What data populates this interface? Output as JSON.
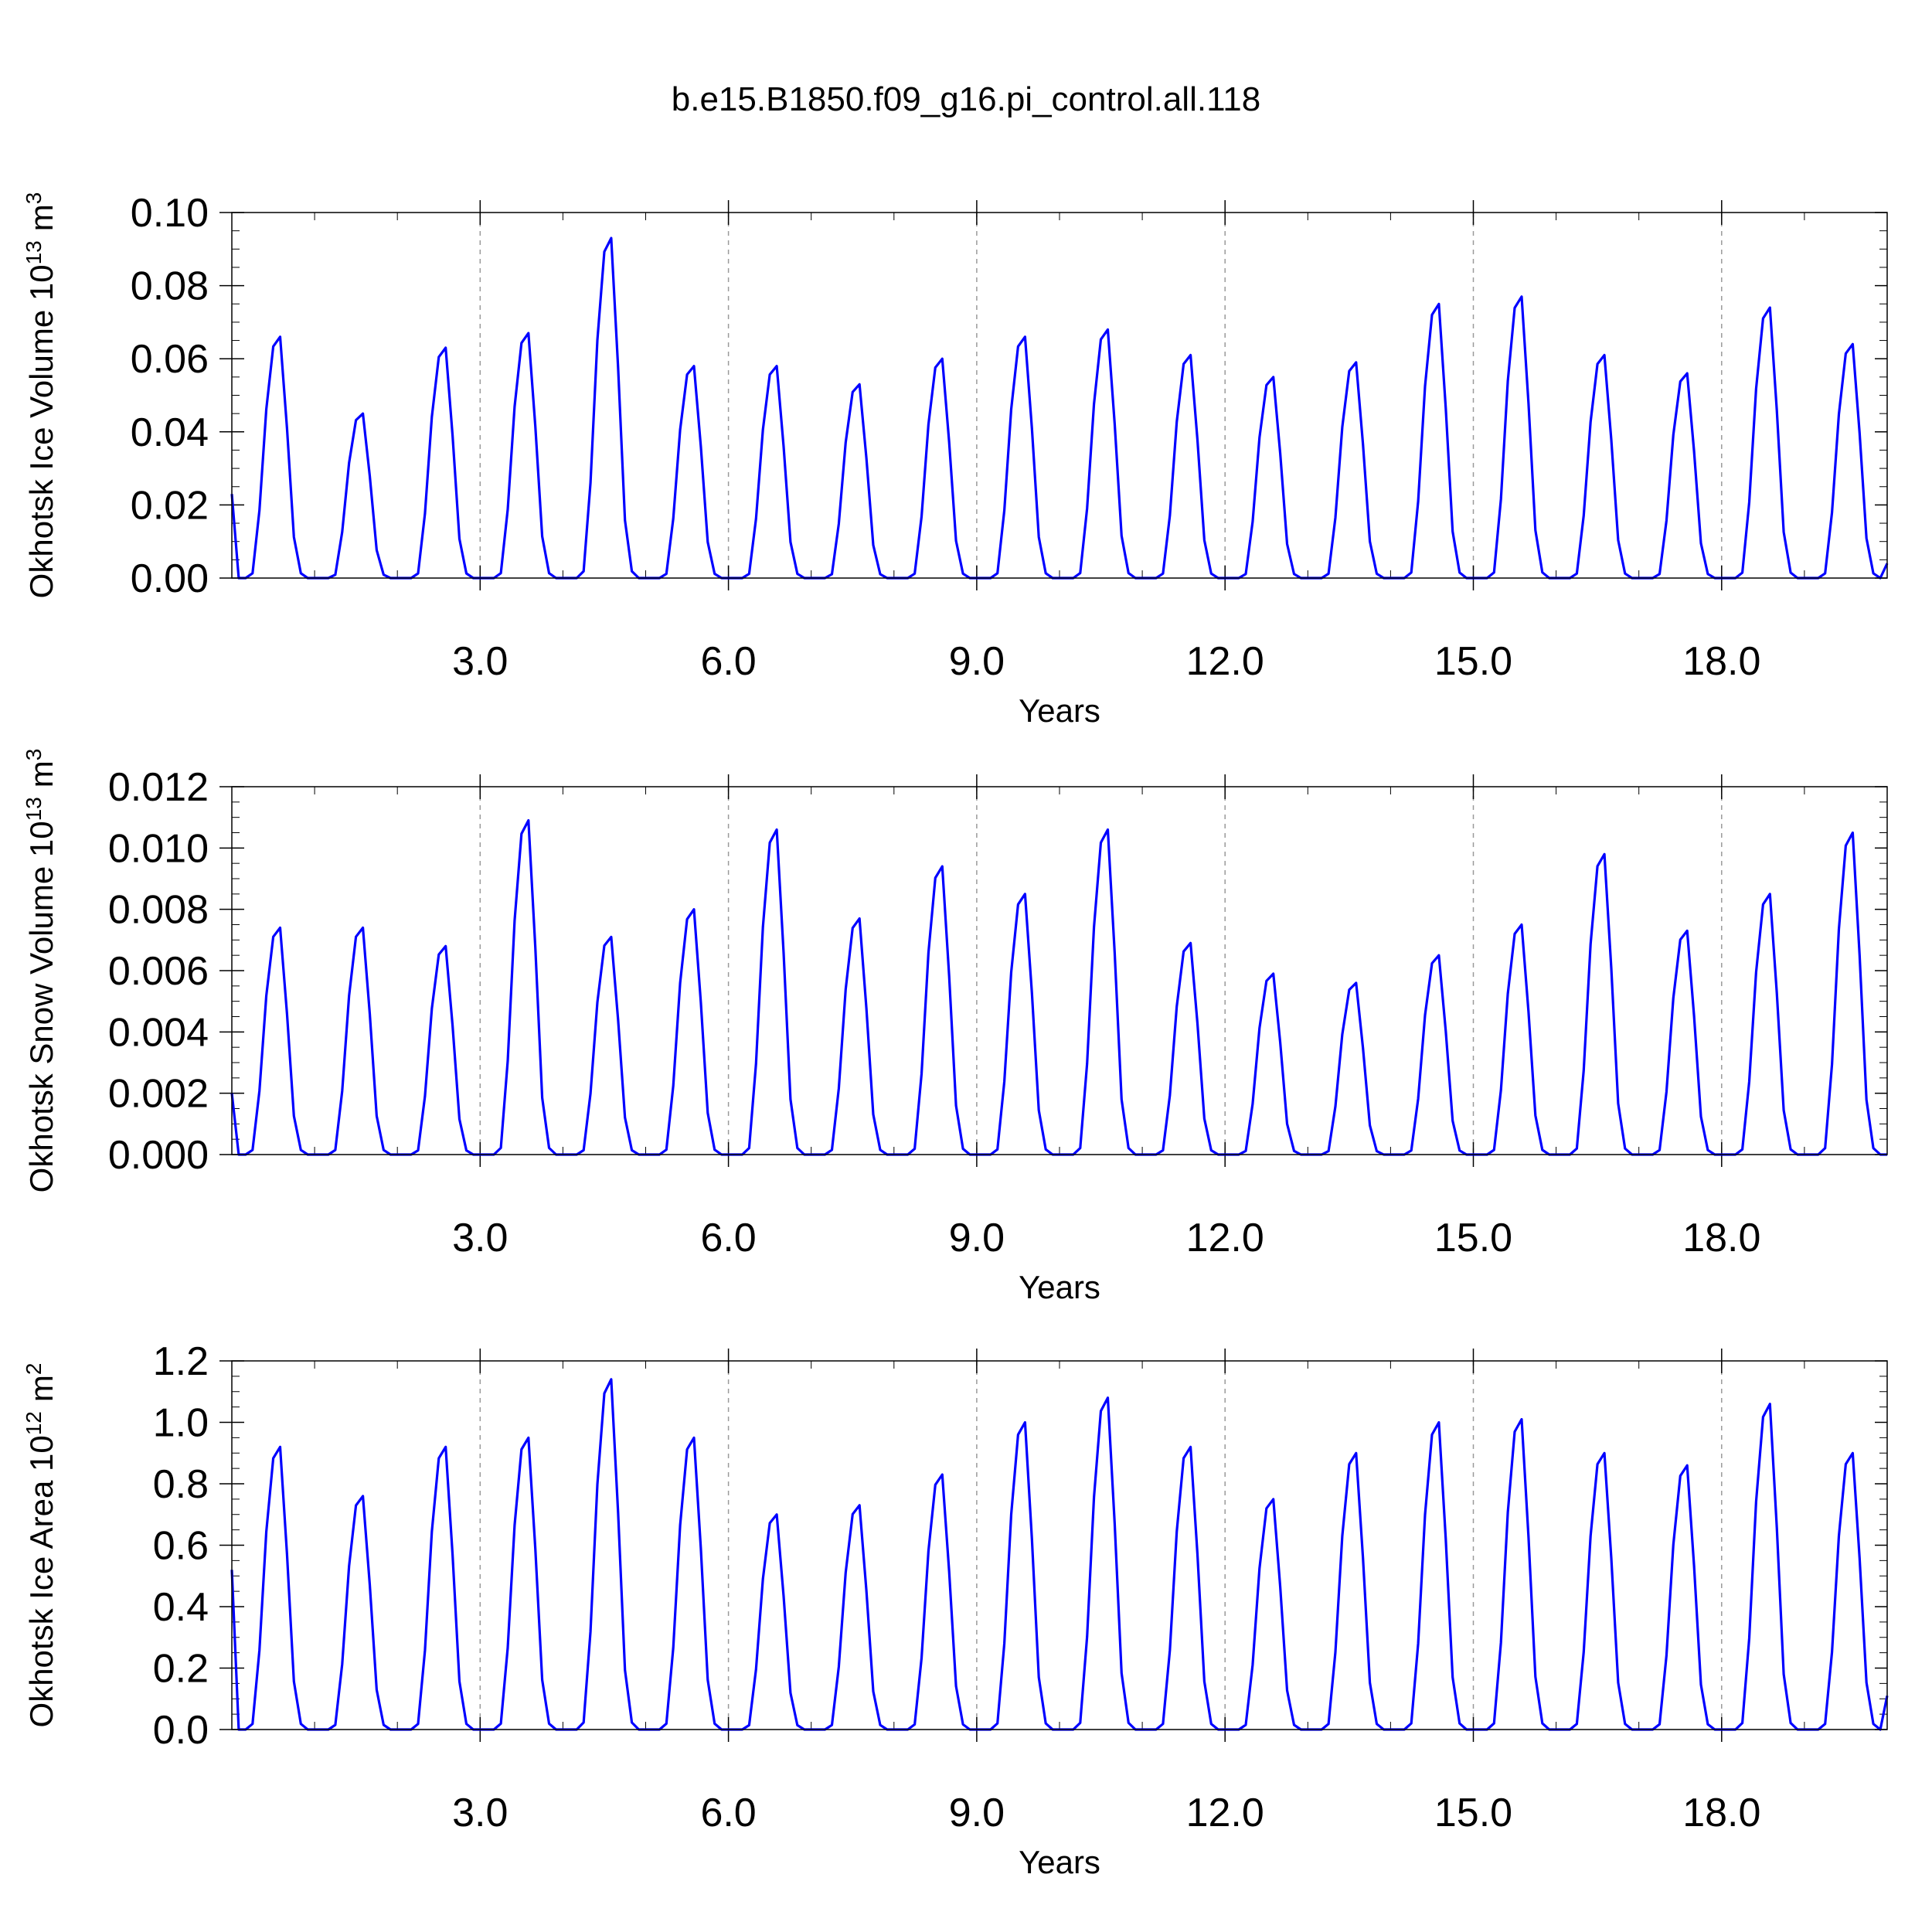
{
  "figure_title": "b.e15.B1850.f09_g16.pi_control.all.118",
  "series_color": "#0000ff",
  "chart_data": [
    {
      "type": "line",
      "name": "ice-volume",
      "ylabel": "Okhotsk Ice Volume 10",
      "ylabel_exp": "13",
      "ylabel_unit": "m",
      "ylabel_unit_exp": "3",
      "xlabel": "Years",
      "xlim": [
        0,
        20
      ],
      "ylim": [
        0,
        0.1
      ],
      "yticks": [
        0,
        0.02,
        0.04,
        0.06,
        0.08,
        0.1
      ],
      "ytick_labels": [
        "0.00",
        "0.02",
        "0.04",
        "0.06",
        "0.08",
        "0.10"
      ],
      "yminor_step": 0.005,
      "xticks": [
        3,
        6,
        9,
        12,
        15,
        18
      ],
      "xtick_labels": [
        "3.0",
        "6.0",
        "9.0",
        "12.0",
        "15.0",
        "18.0"
      ],
      "xminor_step": 1,
      "grid_x": true,
      "peaks": [
        0.066,
        0.045,
        0.063,
        0.067,
        0.093,
        0.058,
        0.058,
        0.053,
        0.06,
        0.066,
        0.068,
        0.061,
        0.055,
        0.059,
        0.075,
        0.077,
        0.061,
        0.056,
        0.074,
        0.064
      ],
      "start_value": 0.023,
      "end_value": 0.004
    },
    {
      "type": "line",
      "name": "snow-volume",
      "ylabel": "Okhotsk Snow Volume 10",
      "ylabel_exp": "13",
      "ylabel_unit": "m",
      "ylabel_unit_exp": "3",
      "xlabel": "Years",
      "xlim": [
        0,
        20
      ],
      "ylim": [
        0,
        0.012
      ],
      "yticks": [
        0,
        0.002,
        0.004,
        0.006,
        0.008,
        0.01,
        0.012
      ],
      "ytick_labels": [
        "0.000",
        "0.002",
        "0.004",
        "0.006",
        "0.008",
        "0.010",
        "0.012"
      ],
      "yminor_step": 0.0005,
      "xticks": [
        3,
        6,
        9,
        12,
        15,
        18
      ],
      "xtick_labels": [
        "3.0",
        "6.0",
        "9.0",
        "12.0",
        "15.0",
        "18.0"
      ],
      "xminor_step": 1,
      "grid_x": true,
      "peaks": [
        0.0074,
        0.0074,
        0.0068,
        0.0109,
        0.0071,
        0.008,
        0.0106,
        0.0077,
        0.0094,
        0.0085,
        0.0106,
        0.0069,
        0.0059,
        0.0056,
        0.0065,
        0.0075,
        0.0098,
        0.0073,
        0.0085,
        0.0105
      ],
      "start_value": 0.002,
      "end_value": 0
    },
    {
      "type": "line",
      "name": "ice-area",
      "ylabel": "Okhotsk Ice Area 10",
      "ylabel_exp": "12",
      "ylabel_unit": "m",
      "ylabel_unit_exp": "2",
      "xlabel": "Years",
      "xlim": [
        0,
        20
      ],
      "ylim": [
        0,
        1.2
      ],
      "yticks": [
        0,
        0.2,
        0.4,
        0.6,
        0.8,
        1.0,
        1.2
      ],
      "ytick_labels": [
        "0.0",
        "0.2",
        "0.4",
        "0.6",
        "0.8",
        "1.0",
        "1.2"
      ],
      "yminor_step": 0.05,
      "xticks": [
        3,
        6,
        9,
        12,
        15,
        18
      ],
      "xtick_labels": [
        "3.0",
        "6.0",
        "9.0",
        "12.0",
        "15.0",
        "18.0"
      ],
      "xminor_step": 1,
      "grid_x": true,
      "peaks": [
        0.92,
        0.76,
        0.92,
        0.95,
        1.14,
        0.95,
        0.7,
        0.73,
        0.83,
        1.0,
        1.08,
        0.92,
        0.75,
        0.9,
        1.0,
        1.01,
        0.9,
        0.86,
        1.06,
        0.9
      ],
      "start_value": 0.52,
      "end_value": 0.11
    }
  ]
}
